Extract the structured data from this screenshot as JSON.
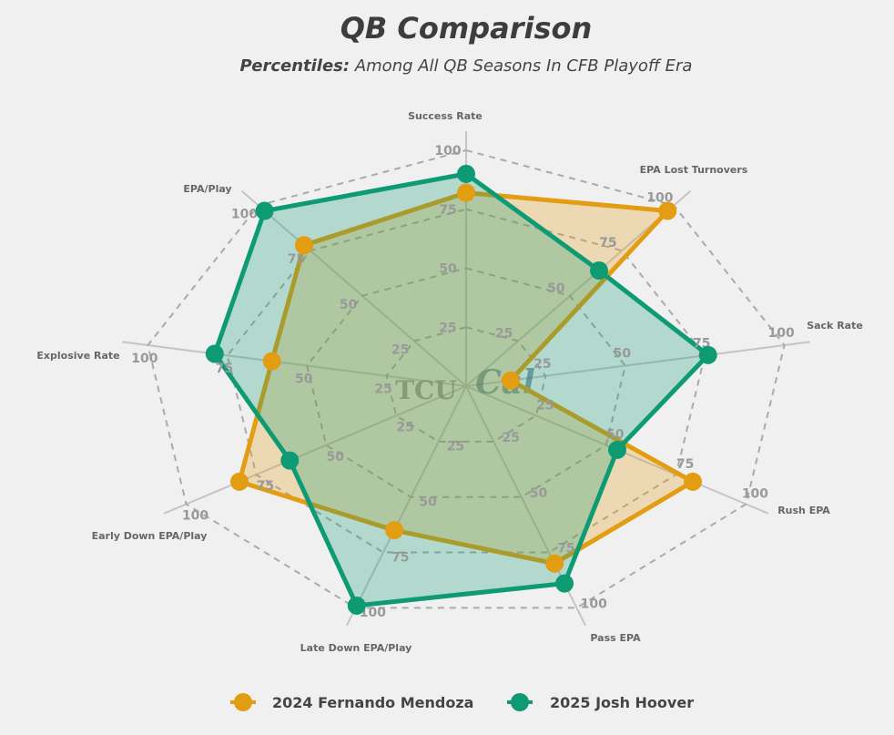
{
  "chart_data": {
    "type": "radar",
    "title": "QB Comparison",
    "subtitle_bold": "Percentiles:",
    "subtitle": "Among All QB Seasons In CFB Playoff Era",
    "categories": [
      "Success Rate",
      "EPA Lost Turnovers",
      "Sack Rate",
      "Rush EPA",
      "Pass EPA",
      "Late Down EPA/Play",
      "Early Down EPA/Play",
      "Explosive Rate",
      "EPA/Play"
    ],
    "ticks": [
      "25",
      "50",
      "75",
      "100"
    ],
    "range": [
      0,
      100
    ],
    "grid": true,
    "legend_position": "bottom",
    "series": [
      {
        "name": "2024 Fernando Mendoza",
        "color": "#E39D12",
        "values": [
          82,
          97,
          14,
          81,
          80,
          65,
          81,
          61,
          78
        ]
      },
      {
        "name": "2025 Josh Hoover",
        "color": "#0E9B74",
        "values": [
          90,
          64,
          76,
          54,
          89,
          99,
          63,
          79,
          97
        ]
      }
    ],
    "logos": [
      "TCU",
      "Cal"
    ]
  }
}
